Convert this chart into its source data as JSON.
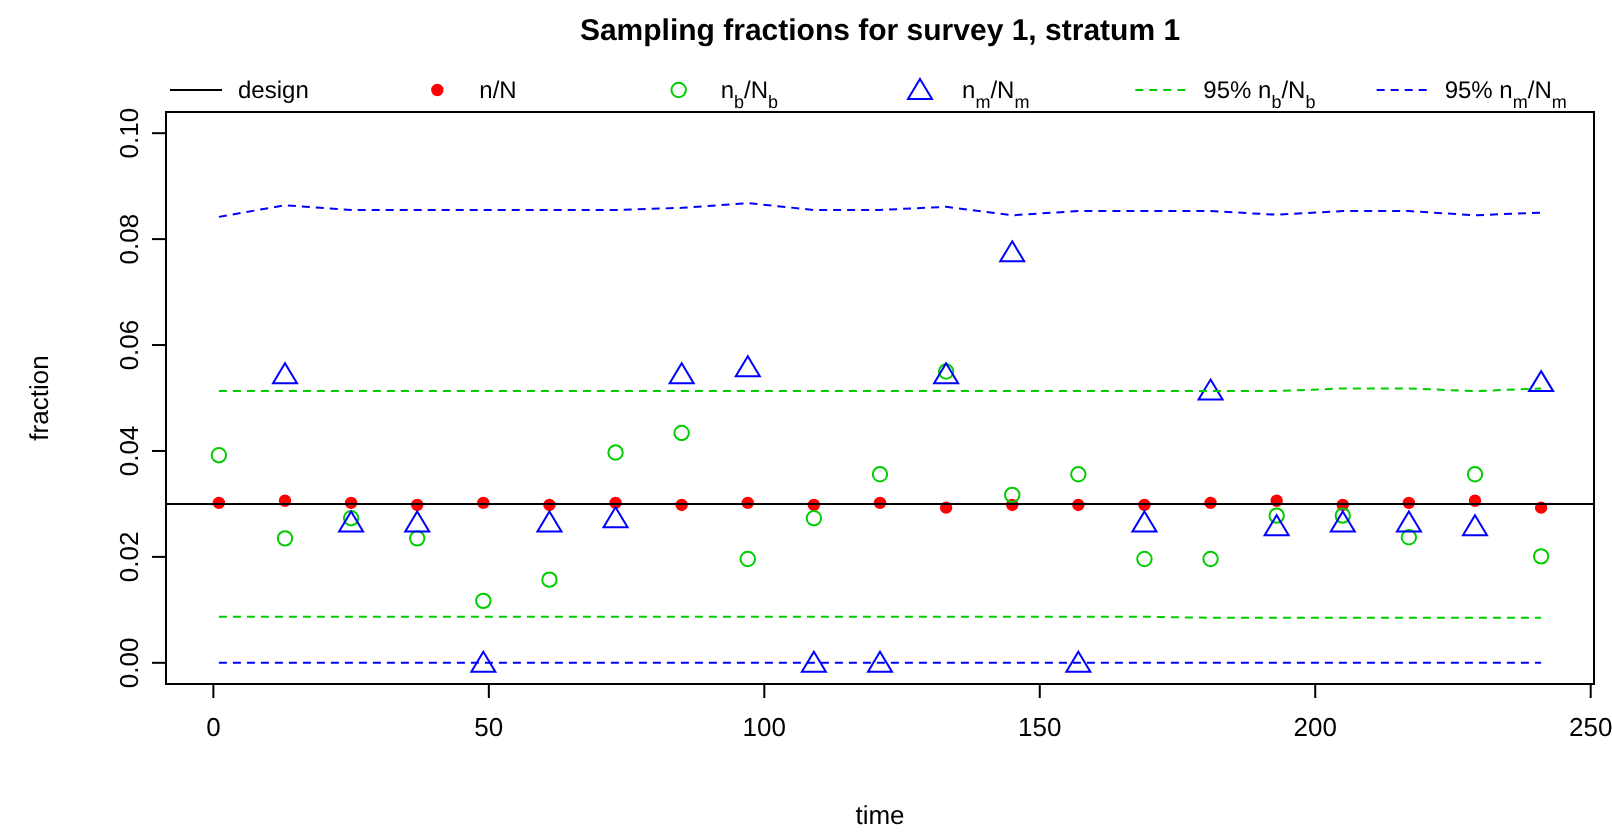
{
  "chart_data": {
    "type": "scatter",
    "title": "Sampling fractions for survey 1, stratum 1",
    "xlabel": "time",
    "ylabel": "fraction",
    "x": [
      1,
      13,
      25,
      37,
      49,
      61,
      73,
      85,
      97,
      109,
      121,
      133,
      145,
      157,
      169,
      181,
      193,
      205,
      217,
      229,
      241
    ],
    "xlim": [
      -8.6,
      250.6
    ],
    "xticks": [
      0,
      50,
      100,
      150,
      200,
      250
    ],
    "ylim": [
      -0.004,
      0.104
    ],
    "yticks": [
      {
        "value": 0,
        "label": "0.00"
      },
      {
        "value": 0.02,
        "label": "0.02"
      },
      {
        "value": 0.04,
        "label": "0.04"
      },
      {
        "value": 0.06,
        "label": "0.06"
      },
      {
        "value": 0.08,
        "label": "0.08"
      },
      {
        "value": 0.1,
        "label": "0.10"
      }
    ],
    "legend": "top",
    "grid": false,
    "ref_lines": [
      {
        "axis": "y",
        "value": 0.03,
        "label": "design",
        "color": "#000000",
        "line_style": "solid"
      }
    ],
    "series": [
      {
        "name": "n/N",
        "marker": "circle",
        "color": "#ff0000",
        "values": [
          0.0302,
          0.0306,
          0.0302,
          0.0298,
          0.0302,
          0.0298,
          0.0302,
          0.0298,
          0.0302,
          0.0298,
          0.0302,
          0.0293,
          0.0298,
          0.0298,
          0.0298,
          0.0302,
          0.0306,
          0.0298,
          0.0302,
          0.0306,
          0.0293
        ]
      },
      {
        "name": "n$_{b}$/N$_{b}$",
        "marker": "circle",
        "color": "#00cc00",
        "values": [
          0.0392,
          0.0235,
          0.0273,
          0.0235,
          0.0117,
          0.0157,
          0.0397,
          0.0434,
          0.0196,
          0.0273,
          0.0356,
          0.055,
          0.0317,
          0.0356,
          0.0196,
          0.0196,
          0.0278,
          0.0278,
          0.0237,
          0.0356,
          0.0201
        ]
      },
      {
        "name": "n$_{m}$/N$_{m}$",
        "marker": "triangle",
        "color": "#0000ff",
        "values": [
          null,
          0.0545,
          0.0265,
          0.0265,
          0,
          0.0265,
          0.0273,
          0.0545,
          0.0558,
          0,
          0,
          0.0545,
          0.0775,
          0,
          0.0265,
          0.0514,
          0.0258,
          0.0265,
          0.0265,
          0.0258,
          0.053
        ]
      },
      {
        "name": "95% n$_{b}$/N$_{b}$",
        "type": "line",
        "line_style": "dashed",
        "color": "#00cc00",
        "values": [
          0.0513,
          0.0513,
          0.0513,
          0.0513,
          0.0513,
          0.0513,
          0.0513,
          0.0513,
          0.0513,
          0.0513,
          0.0513,
          0.0513,
          0.0513,
          0.0513,
          0.0513,
          0.0513,
          0.0513,
          0.0518,
          0.0518,
          0.0513,
          0.0518
        ]
      },
      {
        "type": "line",
        "line_style": "dashed",
        "color": "#00cc00",
        "values": [
          0.0087,
          0.0087,
          0.0087,
          0.0087,
          0.0087,
          0.0087,
          0.0087,
          0.0087,
          0.0087,
          0.0087,
          0.0087,
          0.0087,
          0.0087,
          0.0087,
          0.0087,
          0.0085,
          0.0085,
          0.0085,
          0.0085,
          0.0085,
          0.0085
        ]
      },
      {
        "name": "95% n$_{m}$/N$_{m}$",
        "type": "line",
        "line_style": "dashed",
        "color": "#0000ff",
        "values": [
          0.0842,
          0.0864,
          0.0855,
          0.0855,
          0.0855,
          0.0855,
          0.0855,
          0.0859,
          0.0868,
          0.0855,
          0.0855,
          0.0861,
          0.0845,
          0.0853,
          0.0853,
          0.0853,
          0.0846,
          0.0853,
          0.0853,
          0.0845,
          0.085
        ]
      },
      {
        "type": "line",
        "line_style": "dashed",
        "color": "#0000ff",
        "values": [
          0,
          0,
          0,
          0,
          0,
          0,
          0,
          0,
          0,
          0,
          0,
          0,
          0,
          0,
          0,
          0,
          0,
          0,
          0,
          0,
          0
        ]
      }
    ]
  }
}
